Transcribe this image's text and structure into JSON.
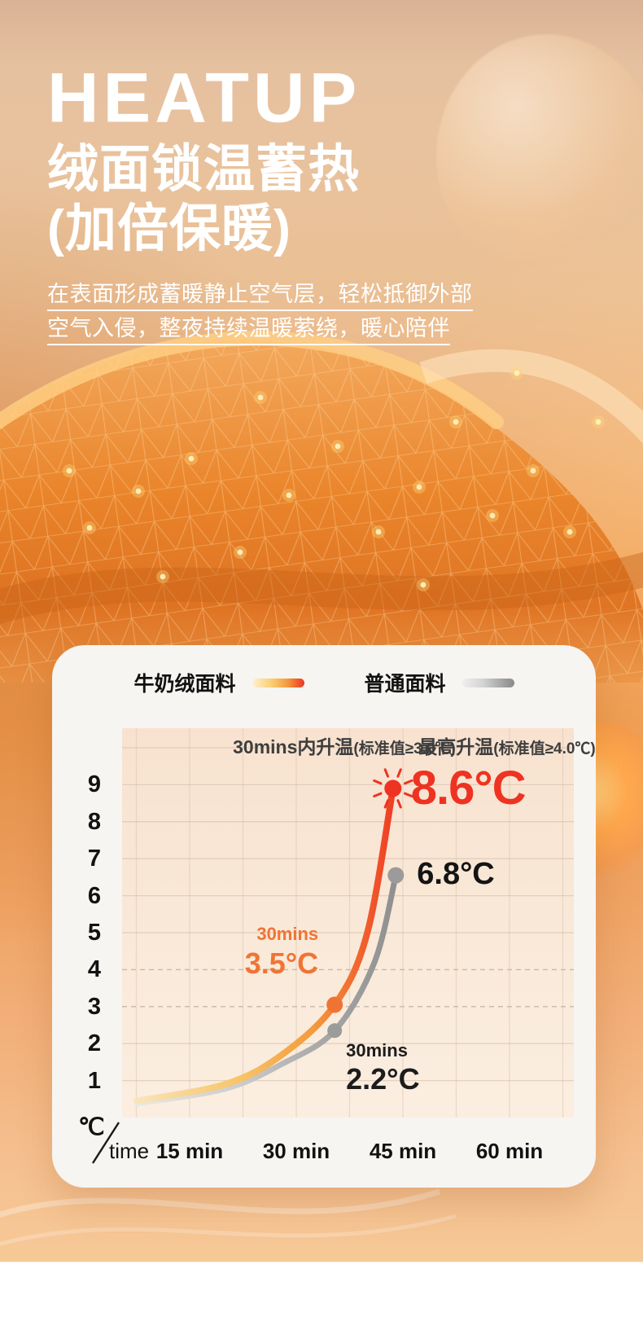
{
  "hero": {
    "brand": "HEATUP",
    "headline1": "绒面锁温蓄热",
    "headline2": "(加倍保暖)",
    "desc1": "在表面形成蓄暖静止空气层，轻松抵御外部",
    "desc2": "空气入侵，整夜持续温暖萦绕，暖心陪伴"
  },
  "legend": {
    "series1": "牛奶绒面料",
    "series2": "普通面料"
  },
  "colors": {
    "accent_red": "#ee3322",
    "accent_orange": "#f07434",
    "gray_series": "#9b9b9b",
    "plot_background": "#f9e8d7",
    "card_background": "#f6f5f2"
  },
  "chart_data": {
    "type": "line",
    "header_left": {
      "main": "30mins内升温",
      "paren": "(标准值≥3.0℃)"
    },
    "header_right": {
      "main": "最高升温",
      "paren": "(标准值≥4.0℃)"
    },
    "axis_corner": {
      "unit": "℃",
      "word": "time"
    },
    "y_ticks": [
      1,
      2,
      3,
      4,
      5,
      6,
      7,
      8,
      9
    ],
    "grid_y_max": 10,
    "dashed_y_ticks": [
      3,
      4
    ],
    "x_ticks": [
      {
        "minutes": 15,
        "label": "15 min"
      },
      {
        "minutes": 30,
        "label": "30 min"
      },
      {
        "minutes": 45,
        "label": "45 min"
      },
      {
        "minutes": 60,
        "label": "60 min"
      }
    ],
    "xlim_minutes": [
      0,
      60
    ],
    "ylim": [
      0,
      10.5
    ],
    "legend_position": "top",
    "grid": true,
    "series": [
      {
        "name": "牛奶绒面料",
        "gradient": [
          "#f9e9c6",
          "#f8c468",
          "#f49a3c",
          "#ee3322"
        ],
        "curve_points": [
          [
            7.6,
            0.45
          ],
          [
            20,
            0.9
          ],
          [
            28,
            1.7
          ],
          [
            35.4,
            3.05
          ],
          [
            40,
            5.0
          ],
          [
            43.6,
            8.9
          ]
        ],
        "mid_dot_index": 3,
        "end_dot_index": 5,
        "mid_dot_color": "#ef7434",
        "end_dot_color": "#ee3322",
        "end_burst": true,
        "rise_at_30min_c": 3.5,
        "max_rise_c": 8.6
      },
      {
        "name": "普通面料",
        "gradient": [
          "#ededec",
          "#cccccc",
          "#ababab",
          "#8d8d8d"
        ],
        "curve_points": [
          [
            7.6,
            0.38
          ],
          [
            20,
            0.78
          ],
          [
            28,
            1.45
          ],
          [
            35.4,
            2.35
          ],
          [
            41,
            4.2
          ],
          [
            44,
            6.55
          ]
        ],
        "mid_dot_index": 3,
        "end_dot_index": 5,
        "mid_dot_color": "#9b9b9b",
        "end_dot_color": "#9b9b9b",
        "end_burst": false,
        "rise_at_30min_c": 2.2,
        "max_rise_c": 6.8
      }
    ],
    "annotations": {
      "red_mid_line1": "30mins",
      "red_mid_line2": "3.5°C",
      "gray_mid_line1": "30mins",
      "gray_mid_line2": "2.2°C",
      "red_end": "8.6°C",
      "gray_end": "6.8°C"
    }
  }
}
